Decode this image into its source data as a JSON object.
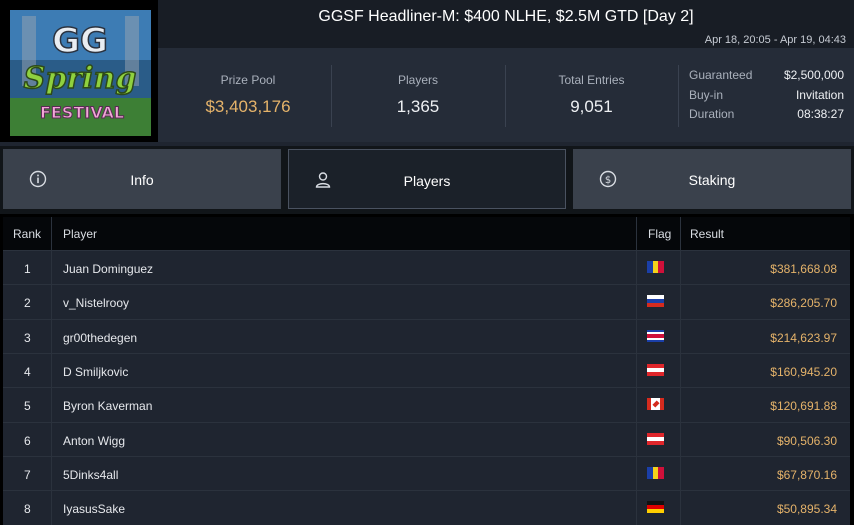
{
  "tournament": {
    "title": "GGSF Headliner-M: $400 NLHE, $2.5M GTD [Day 2]",
    "dates": "Apr 18, 20:05 - Apr 19, 04:43"
  },
  "logo": {
    "line1": "GG",
    "line2": "Spring",
    "line3": "FESTIVAL"
  },
  "stats": {
    "prize_pool_label": "Prize Pool",
    "prize_pool": "$3,403,176",
    "players_label": "Players",
    "players": "1,365",
    "entries_label": "Total Entries",
    "entries": "9,051"
  },
  "details": {
    "guaranteed_label": "Guaranteed",
    "guaranteed": "$2,500,000",
    "buyin_label": "Buy-in",
    "buyin": "Invitation",
    "duration_label": "Duration",
    "duration": "08:38:27"
  },
  "tabs": [
    {
      "label": "Info",
      "icon": "info-circle-icon",
      "active": false
    },
    {
      "label": "Players",
      "icon": "user-icon",
      "active": true
    },
    {
      "label": "Staking",
      "icon": "dollar-exchange-icon",
      "active": false
    }
  ],
  "table": {
    "headers": {
      "rank": "Rank",
      "player": "Player",
      "flag": "Flag",
      "result": "Result"
    },
    "rows": [
      {
        "rank": "1",
        "player": "Juan Dominguez",
        "flag": "andorra-flag",
        "result": "$381,668.08"
      },
      {
        "rank": "2",
        "player": "v_Nistelrooy",
        "flag": "russia-flag",
        "result": "$286,205.70"
      },
      {
        "rank": "3",
        "player": "gr00thedegen",
        "flag": "costa-rica-flag",
        "result": "$214,623.97"
      },
      {
        "rank": "4",
        "player": "D Smiljkovic",
        "flag": "austria-flag",
        "result": "$160,945.20"
      },
      {
        "rank": "5",
        "player": "Byron Kaverman",
        "flag": "canada-flag",
        "result": "$120,691.88"
      },
      {
        "rank": "6",
        "player": "Anton Wigg",
        "flag": "austria-flag",
        "result": "$90,506.30"
      },
      {
        "rank": "7",
        "player": "5Dinks4all",
        "flag": "andorra-flag",
        "result": "$67,870.16"
      },
      {
        "rank": "8",
        "player": "IyasusSake",
        "flag": "germany-flag",
        "result": "$50,895.34"
      }
    ]
  },
  "colors": {
    "accent_gold": "#e5b36a",
    "panel": "#252c38",
    "tab_inactive": "#3a414c",
    "tab_active": "#1b2129"
  }
}
